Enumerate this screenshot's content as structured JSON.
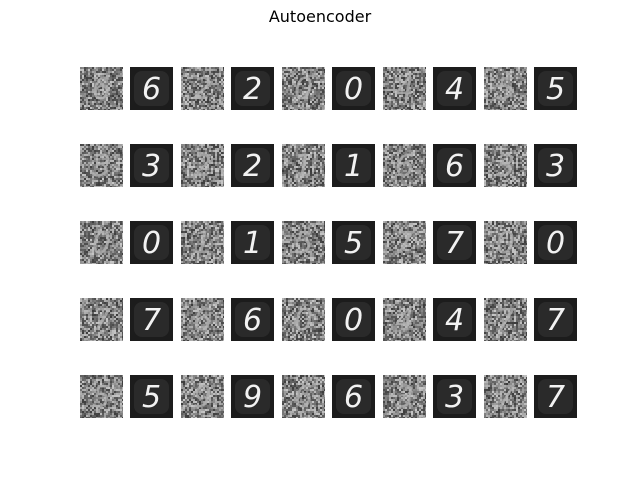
{
  "title": "Autoencoder",
  "pairs": [
    [
      {
        "digit": "6"
      },
      {
        "digit": "2"
      },
      {
        "digit": "0"
      },
      {
        "digit": "4"
      },
      {
        "digit": "5"
      }
    ],
    [
      {
        "digit": "3"
      },
      {
        "digit": "2"
      },
      {
        "digit": "1"
      },
      {
        "digit": "6"
      },
      {
        "digit": "3"
      }
    ],
    [
      {
        "digit": "0"
      },
      {
        "digit": "1"
      },
      {
        "digit": "5"
      },
      {
        "digit": "7"
      },
      {
        "digit": "0"
      }
    ],
    [
      {
        "digit": "7"
      },
      {
        "digit": "6"
      },
      {
        "digit": "0"
      },
      {
        "digit": "4"
      },
      {
        "digit": "7"
      }
    ],
    [
      {
        "digit": "5"
      },
      {
        "digit": "9"
      },
      {
        "digit": "6"
      },
      {
        "digit": "3"
      },
      {
        "digit": "7"
      }
    ]
  ],
  "colors": {
    "noisy_bg": "#6f6f6f",
    "noisy_stroke": "#b4b4b4",
    "clean_bg": "#1c1c1c",
    "clean_stroke": "#f2f2f2"
  }
}
